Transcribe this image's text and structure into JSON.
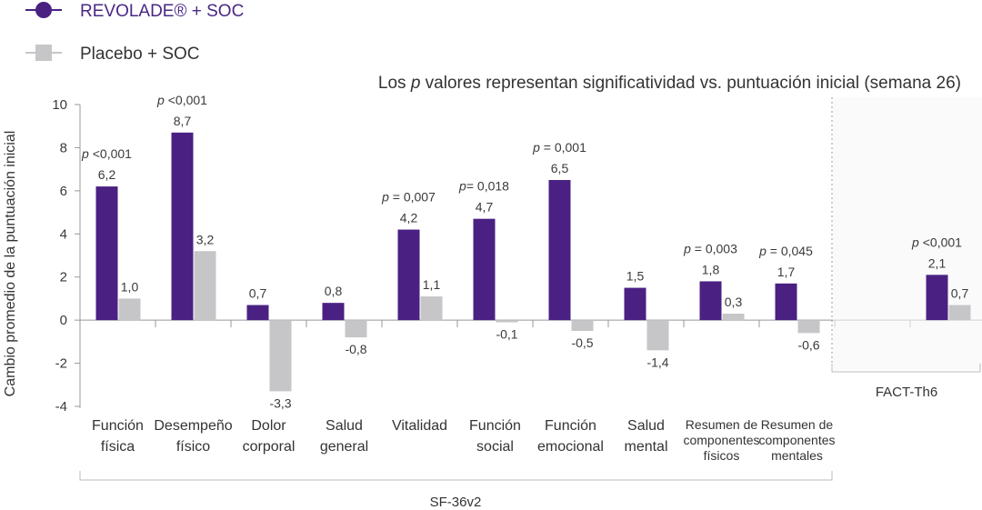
{
  "legend": [
    {
      "label": "REVOLADE® + SOC",
      "color": "#4a2182"
    },
    {
      "label": "Placebo + SOC",
      "color": "#c6c6c8"
    }
  ],
  "note": {
    "prefix": "Los ",
    "italic": "p",
    "suffix": " valores representan significatividad vs. puntuación inicial (semana 26)"
  },
  "chart_data": {
    "type": "bar",
    "ylabel": "Cambio promedio de la puntuación inicial",
    "ylim": [
      -4,
      10
    ],
    "yticks": [
      -4,
      -2,
      0,
      2,
      4,
      6,
      8,
      10
    ],
    "ytick_labels": [
      "-4",
      "-2",
      "0",
      "2",
      "4",
      "6",
      "8",
      "10"
    ],
    "categories": [
      {
        "lines": [
          "Función",
          "física"
        ]
      },
      {
        "lines": [
          "Desempeño",
          "físico"
        ]
      },
      {
        "lines": [
          "Dolor",
          "corporal"
        ]
      },
      {
        "lines": [
          "Salud",
          "general"
        ]
      },
      {
        "lines": [
          "Vitalidad"
        ]
      },
      {
        "lines": [
          "Función",
          "social"
        ]
      },
      {
        "lines": [
          "Función",
          "emocional"
        ]
      },
      {
        "lines": [
          "Salud",
          "mental"
        ]
      },
      {
        "lines": [
          "Resumen de",
          "componentes",
          "físicos"
        ],
        "small": true
      },
      {
        "lines": [
          "Resumen de",
          "componentes",
          "mentales"
        ],
        "small": true
      },
      {
        "lines": []
      },
      {
        "lines": []
      }
    ],
    "series": [
      {
        "name": "REVOLADE® + SOC",
        "color": "#4a2182",
        "values": [
          6.2,
          8.7,
          0.7,
          0.8,
          4.2,
          4.7,
          6.5,
          1.5,
          1.8,
          1.7,
          null,
          2.1
        ],
        "labels": [
          "6,2",
          "8,7",
          "0,7",
          "0,8",
          "4,2",
          "4,7",
          "6,5",
          "1,5",
          "1,8",
          "1,7",
          "",
          "2,1"
        ]
      },
      {
        "name": "Placebo + SOC",
        "color": "#c6c6c8",
        "values": [
          1.0,
          3.2,
          -3.3,
          -0.8,
          1.1,
          -0.1,
          -0.5,
          -1.4,
          0.3,
          -0.6,
          null,
          0.7
        ],
        "labels": [
          "1,0",
          "3,2",
          "-3,3",
          "-0,8",
          "1,1",
          "-0,1",
          "-0,5",
          "-1,4",
          "0,3",
          "-0,6",
          "",
          "0,7"
        ]
      }
    ],
    "pvalues": [
      {
        "index": 0,
        "p": "p",
        "rest": " <0,001"
      },
      {
        "index": 1,
        "p": "p",
        "rest": " <0,001"
      },
      {
        "index": 4,
        "p": "p",
        "rest": " = 0,007"
      },
      {
        "index": 5,
        "p": "p",
        "rest": "= 0,018"
      },
      {
        "index": 6,
        "p": "p",
        "rest": " = 0,001"
      },
      {
        "index": 8,
        "p": "p",
        "rest": " = 0,003"
      },
      {
        "index": 9,
        "p": "p",
        "rest": " = 0,045"
      },
      {
        "index": 11,
        "p": "p",
        "rest": " <0,001"
      }
    ],
    "groups": [
      {
        "label": "SF-36v2",
        "from": 0,
        "to": 9
      },
      {
        "label": "FACT-Th6",
        "from": 10,
        "to": 11
      }
    ]
  }
}
